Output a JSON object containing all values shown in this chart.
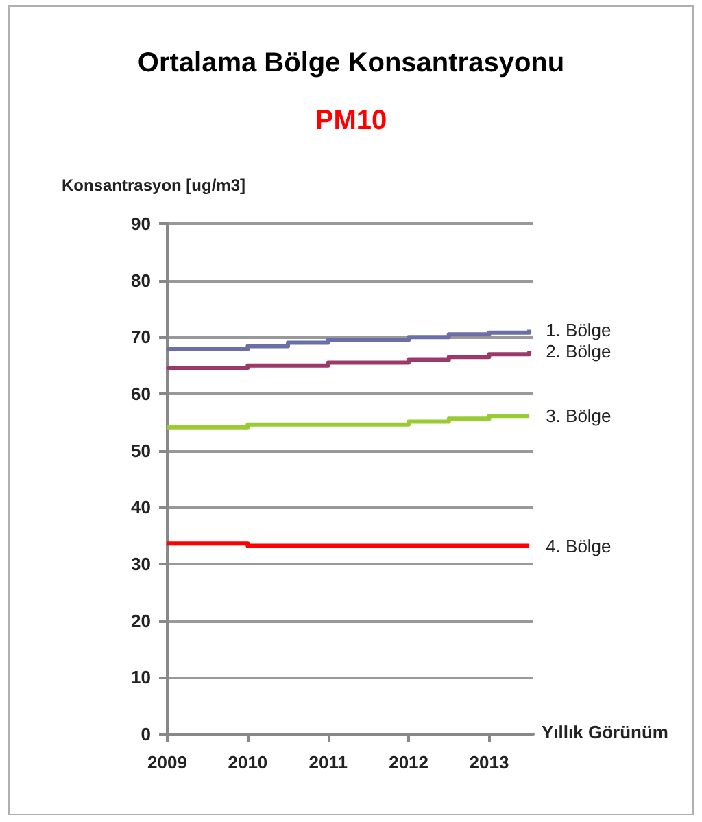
{
  "chart_data": {
    "type": "step",
    "title": "Ortalama Bölge Konsantrasyonu",
    "subtitle": "PM10",
    "ylabel": "Konsantrasyon [ug/m3]",
    "xlabel": "Yıllık Görünüm",
    "xlim": [
      2009,
      2013.55
    ],
    "xticks": [
      2009,
      2010,
      2011,
      2012,
      2013
    ],
    "ylim": [
      0,
      90
    ],
    "yticks": [
      0,
      10,
      20,
      30,
      40,
      50,
      60,
      70,
      80,
      90
    ],
    "grid": "y",
    "legend": false,
    "marker": "none",
    "line_style": "solid",
    "series": [
      {
        "name": "1. Bölge",
        "color": "#6b6fa8",
        "x": [
          2009,
          2010,
          2010.5,
          2011,
          2012,
          2012.5,
          2013,
          2013.5
        ],
        "values": [
          67.9,
          68.4,
          69.0,
          69.5,
          70.0,
          70.5,
          70.8,
          71.3
        ]
      },
      {
        "name": "2. Bölge",
        "color": "#9b3a6a",
        "x": [
          2009,
          2010,
          2011,
          2012,
          2012.5,
          2013,
          2013.5
        ],
        "values": [
          64.6,
          65.0,
          65.5,
          66.0,
          66.5,
          67.0,
          67.5
        ]
      },
      {
        "name": "3. Bölge",
        "color": "#99cc33",
        "x": [
          2009,
          2010,
          2012,
          2012.5,
          2013,
          2013.5
        ],
        "values": [
          54.1,
          54.6,
          55.1,
          55.6,
          56.1,
          56.1
        ]
      },
      {
        "name": "4. Bölge",
        "color": "#ff0000",
        "x": [
          2009,
          2010,
          2013.5
        ],
        "values": [
          33.6,
          33.2,
          33.2
        ]
      }
    ]
  }
}
